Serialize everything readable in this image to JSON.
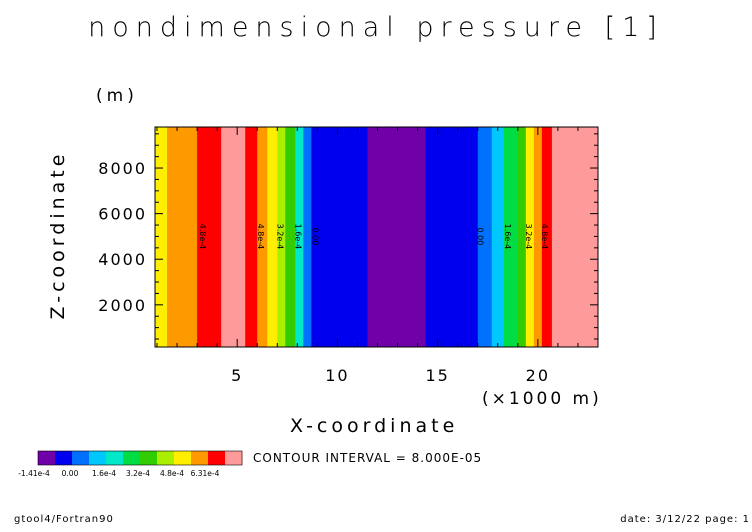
{
  "header": {
    "title": "nondimensional pressure [1]"
  },
  "footer": {
    "left": "gtool4/Fortran90",
    "right": "date: 3/12/22 page: 1"
  },
  "contour_interval": "CONTOUR INTERVAL = 8.000E-05",
  "chart_data": {
    "type": "heatmap",
    "title": "nondimensional pressure [1]",
    "xlabel": "X-coordinate",
    "xunit": "(×1000 m)",
    "ylabel": "Z-coordinate",
    "yunit": "(m)",
    "xlim": [
      0.9,
      23.0
    ],
    "ylim": [
      150,
      9800
    ],
    "xticks": [
      5,
      10,
      15,
      20
    ],
    "xtick_labels": [
      "5",
      "10",
      "15",
      "20"
    ],
    "yticks": [
      2000,
      4000,
      6000,
      8000
    ],
    "ytick_labels": [
      "2000",
      "4000",
      "6000",
      "8000"
    ],
    "levels": [
      -0.00014,
      -8e-05,
      0.0,
      8e-05,
      0.00016,
      0.00024,
      0.00032,
      0.0004,
      0.00048,
      0.00056,
      0.00063
    ],
    "colors": [
      "#7000a8",
      "#0000ee",
      "#0070ff",
      "#00c8ff",
      "#00e8c8",
      "#00dd44",
      "#33cc00",
      "#aaee00",
      "#ffee00",
      "#ff9900",
      "#ff0000",
      "#ff9a9a"
    ],
    "bands": [
      {
        "x0": 0.9,
        "x1": 1.5,
        "level": 8
      },
      {
        "x0": 1.5,
        "x1": 3.0,
        "level": 9
      },
      {
        "x0": 3.0,
        "x1": 4.2,
        "level": 10
      },
      {
        "x0": 4.2,
        "x1": 5.4,
        "level": 11
      },
      {
        "x0": 5.4,
        "x1": 6.0,
        "level": 10
      },
      {
        "x0": 6.0,
        "x1": 6.5,
        "level": 9
      },
      {
        "x0": 6.5,
        "x1": 7.0,
        "level": 8
      },
      {
        "x0": 7.0,
        "x1": 7.4,
        "level": 7
      },
      {
        "x0": 7.4,
        "x1": 7.9,
        "level": 6
      },
      {
        "x0": 7.9,
        "x1": 8.3,
        "level": 4
      },
      {
        "x0": 8.3,
        "x1": 8.7,
        "level": 2
      },
      {
        "x0": 8.7,
        "x1": 11.5,
        "level": 1
      },
      {
        "x0": 11.5,
        "x1": 14.4,
        "level": 0
      },
      {
        "x0": 14.4,
        "x1": 17.0,
        "level": 1
      },
      {
        "x0": 17.0,
        "x1": 17.7,
        "level": 2
      },
      {
        "x0": 17.7,
        "x1": 18.3,
        "level": 3
      },
      {
        "x0": 18.3,
        "x1": 19.0,
        "level": 5
      },
      {
        "x0": 19.0,
        "x1": 19.4,
        "level": 6
      },
      {
        "x0": 19.4,
        "x1": 19.8,
        "level": 8
      },
      {
        "x0": 19.8,
        "x1": 20.2,
        "level": 9
      },
      {
        "x0": 20.2,
        "x1": 20.7,
        "level": 10
      },
      {
        "x0": 20.7,
        "x1": 23.0,
        "level": 11
      }
    ],
    "contour_labels": [
      {
        "x": 3.15,
        "text": "4.8e-4"
      },
      {
        "x": 6.05,
        "text": "4.8e-4"
      },
      {
        "x": 7.0,
        "text": "3.2e-4"
      },
      {
        "x": 7.9,
        "text": "1.6e-4"
      },
      {
        "x": 8.75,
        "text": "0.00"
      },
      {
        "x": 17.0,
        "text": "0.00"
      },
      {
        "x": 18.35,
        "text": "1.6e-4"
      },
      {
        "x": 19.4,
        "text": "3.2e-4"
      },
      {
        "x": 20.2,
        "text": "4.8e-4"
      }
    ],
    "colorbar_labels": [
      "-1.41e-4",
      "0.00",
      "1.6e-4",
      "3.2e-4",
      "4.8e-4",
      "6.31e-4"
    ]
  }
}
